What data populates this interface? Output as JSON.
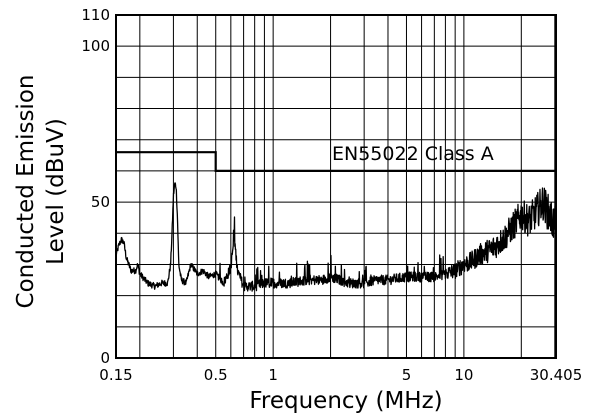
{
  "chart_data": {
    "type": "line",
    "xlabel": "Frequency (MHz)",
    "ylabel_line1": "Conducted Emission",
    "ylabel_line2": "Level (dBuV)",
    "xscale": "log",
    "xlim": [
      0.15,
      30.405
    ],
    "ylim": [
      0,
      110
    ],
    "x_tick_labels": [
      "0.15",
      "0.5",
      "1",
      "5",
      "10",
      "30.405"
    ],
    "x_tick_values": [
      0.15,
      0.5,
      1,
      5,
      10,
      30.405
    ],
    "y_tick_labels": [
      "0",
      "50",
      "100",
      "110"
    ],
    "y_tick_values": [
      0,
      50,
      100,
      110
    ],
    "grid": true,
    "limit_line": {
      "name": "EN55022 Class A",
      "points": [
        [
          0.15,
          66
        ],
        [
          0.5,
          66
        ],
        [
          0.5,
          60
        ],
        [
          30.405,
          60
        ]
      ]
    },
    "series": [
      {
        "values": [
          [
            0.15,
            33
          ],
          [
            0.155,
            36
          ],
          [
            0.16,
            38
          ],
          [
            0.165,
            37
          ],
          [
            0.17,
            32
          ],
          [
            0.18,
            28
          ],
          [
            0.19,
            28
          ],
          [
            0.195,
            30
          ],
          [
            0.2,
            27
          ],
          [
            0.22,
            24
          ],
          [
            0.24,
            23
          ],
          [
            0.26,
            24
          ],
          [
            0.28,
            24
          ],
          [
            0.29,
            30
          ],
          [
            0.295,
            40
          ],
          [
            0.3,
            52
          ],
          [
            0.305,
            56
          ],
          [
            0.31,
            55
          ],
          [
            0.315,
            45
          ],
          [
            0.32,
            30
          ],
          [
            0.33,
            25
          ],
          [
            0.35,
            24
          ],
          [
            0.37,
            30
          ],
          [
            0.4,
            27
          ],
          [
            0.43,
            28
          ],
          [
            0.46,
            26
          ],
          [
            0.5,
            27
          ],
          [
            0.55,
            24
          ],
          [
            0.6,
            29
          ],
          [
            0.625,
            39
          ],
          [
            0.65,
            28
          ],
          [
            0.7,
            23
          ],
          [
            0.8,
            23
          ],
          [
            0.9,
            24
          ],
          [
            1.0,
            24
          ],
          [
            1.2,
            24
          ],
          [
            1.5,
            25
          ],
          [
            1.8,
            25
          ],
          [
            2.0,
            26
          ],
          [
            2.5,
            24
          ],
          [
            3.0,
            24
          ],
          [
            3.5,
            25
          ],
          [
            4.0,
            25
          ],
          [
            5.0,
            26
          ],
          [
            6.0,
            26
          ],
          [
            7.0,
            26
          ],
          [
            8.0,
            27
          ],
          [
            9.0,
            28
          ],
          [
            10.0,
            30
          ],
          [
            11.0,
            31
          ],
          [
            12.0,
            33
          ],
          [
            14.0,
            35
          ],
          [
            16.0,
            38
          ],
          [
            18.0,
            42
          ],
          [
            20.0,
            46
          ],
          [
            22.0,
            44
          ],
          [
            24.0,
            47
          ],
          [
            26.0,
            50
          ],
          [
            28.0,
            46
          ],
          [
            30.405,
            42
          ]
        ]
      }
    ]
  }
}
